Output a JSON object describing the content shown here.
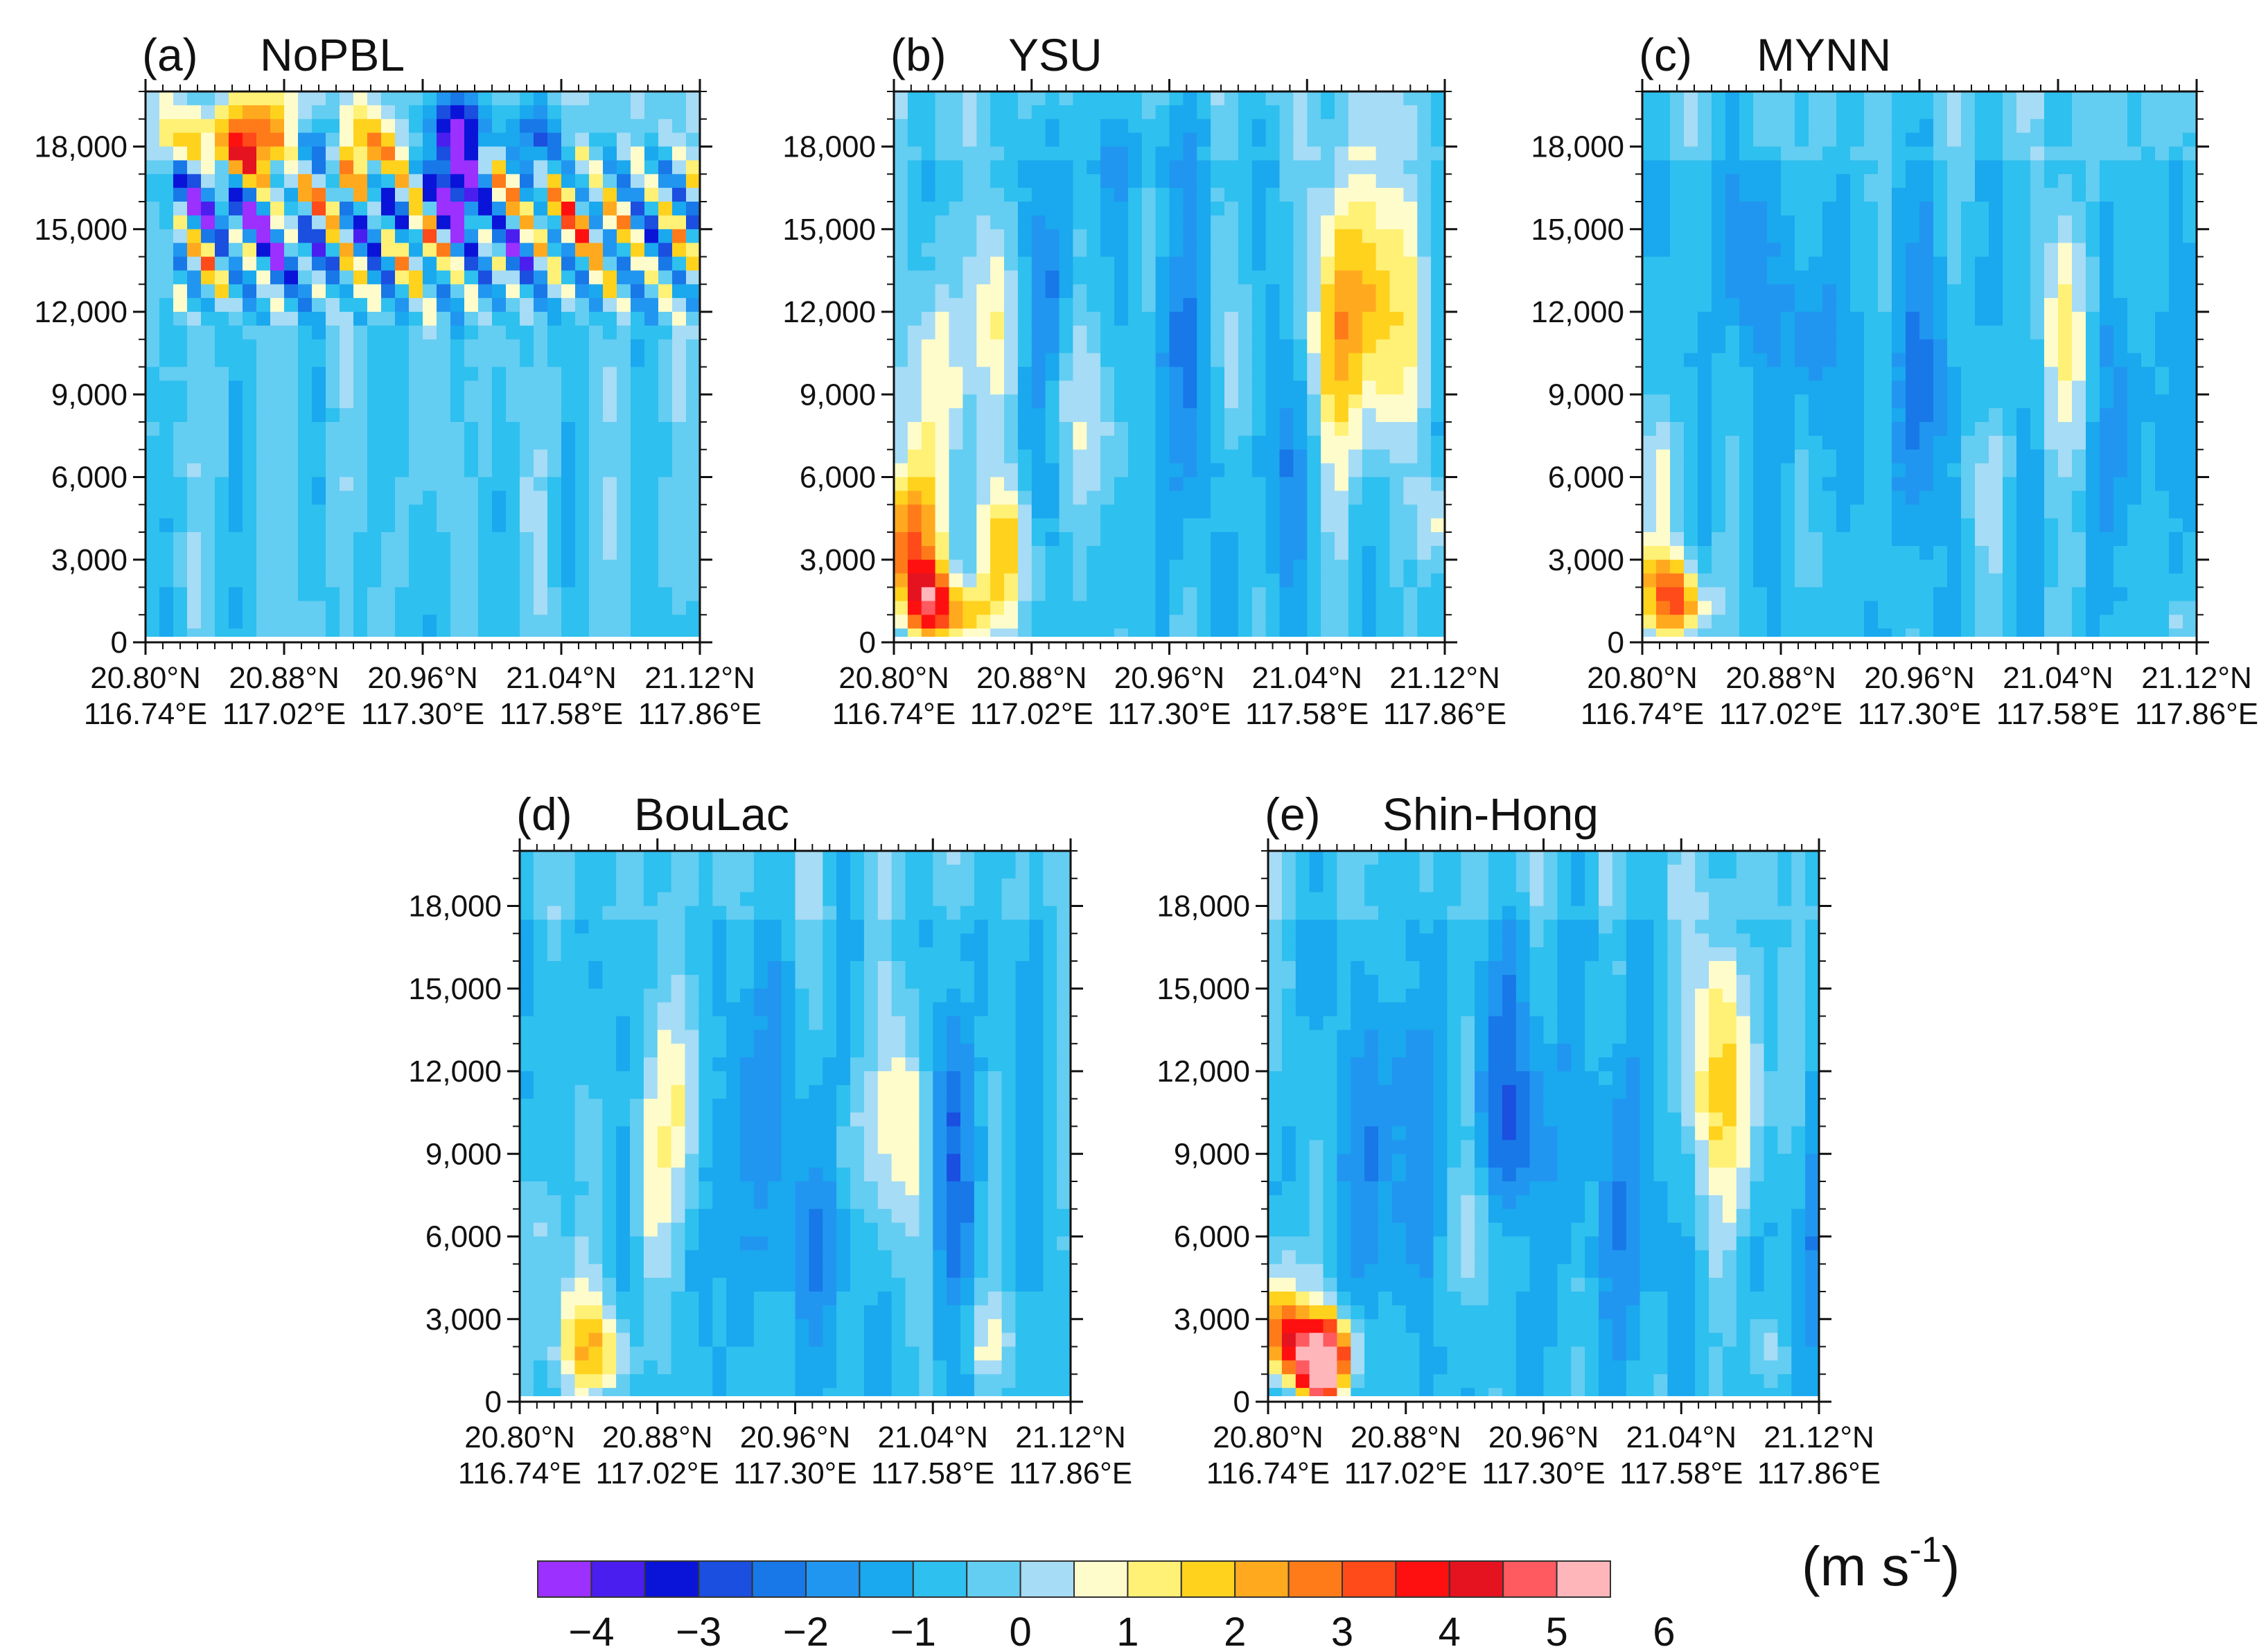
{
  "chart_data": [
    {
      "type": "heatmap",
      "panel_label": "(a)",
      "title": "NoPBL",
      "ylim": [
        0,
        20000
      ],
      "yticks": [
        0,
        3000,
        6000,
        9000,
        12000,
        15000,
        18000
      ],
      "ytick_labels": [
        "0",
        "3,000",
        "6,000",
        "9,000",
        "12,000",
        "15,000",
        "18,000"
      ],
      "xtick_lat": [
        "20.80°N",
        "20.88°N",
        "20.96°N",
        "21.04°N",
        "21.12°N"
      ],
      "xtick_lon": [
        "116.74°E",
        "117.02°E",
        "117.30°E",
        "117.58°E",
        "117.86°E"
      ],
      "field": {
        "base": -0.5,
        "blobs": [
          [
            0.15,
            0.13,
            0.05,
            0.05,
            3.0
          ],
          [
            0.22,
            0.08,
            0.05,
            0.06,
            2.6
          ],
          [
            0.35,
            0.18,
            0.04,
            0.05,
            2.4
          ],
          [
            0.45,
            0.13,
            0.04,
            0.05,
            2.0
          ],
          [
            0.56,
            0.09,
            0.05,
            0.06,
            -4.2
          ],
          [
            0.57,
            0.2,
            0.04,
            0.04,
            -3.8
          ],
          [
            0.18,
            0.22,
            0.05,
            0.04,
            -3.0
          ],
          [
            0.1,
            0.17,
            0.04,
            0.05,
            -2.6
          ],
          [
            0.3,
            0.1,
            0.04,
            0.04,
            -2.4
          ],
          [
            0.4,
            0.22,
            0.04,
            0.04,
            -2.4
          ],
          [
            0.62,
            0.15,
            0.04,
            0.05,
            2.2
          ],
          [
            0.7,
            0.09,
            0.04,
            0.04,
            -2.2
          ],
          [
            0.72,
            0.22,
            0.04,
            0.04,
            1.8
          ],
          [
            0.5,
            0.28,
            0.04,
            0.04,
            1.6
          ],
          [
            0.25,
            0.3,
            0.04,
            0.04,
            -1.8
          ],
          [
            0.12,
            0.3,
            0.04,
            0.04,
            1.4
          ],
          [
            0.66,
            0.28,
            0.04,
            0.04,
            -1.6
          ],
          [
            0.8,
            0.25,
            0.05,
            0.05,
            1.2
          ],
          [
            0.4,
            0.08,
            0.03,
            0.04,
            1.8
          ],
          [
            0.08,
            0.08,
            0.03,
            0.04,
            1.6
          ],
          [
            0.27,
            0.2,
            0.03,
            0.03,
            2.0
          ]
        ],
        "waves": [
          [
            0.06,
            0.45,
            0.06,
            0.36,
            2.6,
            0.38,
            1.0
          ]
        ]
      }
    },
    {
      "type": "heatmap",
      "panel_label": "(b)",
      "title": "YSU",
      "ylim": [
        0,
        20000
      ],
      "yticks": [
        0,
        3000,
        6000,
        9000,
        12000,
        15000,
        18000
      ],
      "ytick_labels": [
        "0",
        "3,000",
        "6,000",
        "9,000",
        "12,000",
        "15,000",
        "18,000"
      ],
      "xtick_lat": [
        "20.80°N",
        "20.88°N",
        "20.96°N",
        "21.04°N",
        "21.12°N"
      ],
      "xtick_lon": [
        "116.74°E",
        "117.02°E",
        "117.30°E",
        "117.58°E",
        "117.86°E"
      ],
      "field": {
        "base": -0.7,
        "blobs": [
          [
            0.02,
            0.82,
            0.04,
            0.09,
            3.6
          ],
          [
            0.06,
            0.92,
            0.03,
            0.05,
            3.4
          ],
          [
            0.12,
            0.95,
            0.04,
            0.04,
            2.6
          ],
          [
            0.2,
            0.84,
            0.04,
            0.08,
            2.4
          ],
          [
            0.08,
            0.55,
            0.05,
            0.15,
            1.5
          ],
          [
            0.18,
            0.4,
            0.04,
            0.14,
            1.3
          ],
          [
            0.3,
            0.55,
            0.03,
            0.1,
            1.1
          ],
          [
            0.37,
            0.6,
            0.03,
            0.12,
            1.2
          ],
          [
            0.87,
            0.38,
            0.06,
            0.18,
            2.4
          ],
          [
            0.8,
            0.45,
            0.05,
            0.18,
            1.4
          ],
          [
            0.62,
            0.5,
            0.03,
            0.12,
            1.0
          ],
          [
            0.98,
            0.78,
            0.02,
            0.06,
            1.4
          ],
          [
            0.45,
            0.1,
            0.12,
            0.06,
            -0.9
          ],
          [
            0.28,
            0.45,
            0.04,
            0.2,
            -1.3
          ],
          [
            0.52,
            0.55,
            0.04,
            0.2,
            -1.2
          ],
          [
            0.7,
            0.65,
            0.04,
            0.2,
            -1.2
          ]
        ]
      }
    },
    {
      "type": "heatmap",
      "panel_label": "(c)",
      "title": "MYNN",
      "ylim": [
        0,
        20000
      ],
      "yticks": [
        0,
        3000,
        6000,
        9000,
        12000,
        15000,
        18000
      ],
      "ytick_labels": [
        "0",
        "3,000",
        "6,000",
        "9,000",
        "12,000",
        "15,000",
        "18,000"
      ],
      "xtick_lat": [
        "20.80°N",
        "20.88°N",
        "20.96°N",
        "21.04°N",
        "21.12°N"
      ],
      "xtick_lon": [
        "116.74°E",
        "117.02°E",
        "117.30°E",
        "117.58°E",
        "117.86°E"
      ],
      "field": {
        "base": -0.8,
        "blobs": [
          [
            0.04,
            0.9,
            0.04,
            0.06,
            2.8
          ],
          [
            0.08,
            0.94,
            0.03,
            0.04,
            2.4
          ],
          [
            0.03,
            0.7,
            0.03,
            0.08,
            1.2
          ],
          [
            0.76,
            0.42,
            0.03,
            0.16,
            1.9
          ],
          [
            0.3,
            0.45,
            0.03,
            0.12,
            -1.4
          ],
          [
            0.5,
            0.55,
            0.04,
            0.18,
            -1.3
          ],
          [
            0.88,
            0.6,
            0.03,
            0.14,
            -1.2
          ],
          [
            0.62,
            0.72,
            0.03,
            0.1,
            0.9
          ],
          [
            0.97,
            0.95,
            0.02,
            0.03,
            1.1
          ],
          [
            0.18,
            0.3,
            0.04,
            0.14,
            -1.0
          ]
        ]
      }
    },
    {
      "type": "heatmap",
      "panel_label": "(d)",
      "title": "BouLac",
      "ylim": [
        0,
        20000
      ],
      "yticks": [
        0,
        3000,
        6000,
        9000,
        12000,
        15000,
        18000
      ],
      "ytick_labels": [
        "0",
        "3,000",
        "6,000",
        "9,000",
        "12,000",
        "15,000",
        "18,000"
      ],
      "xtick_lat": [
        "20.80°N",
        "20.88°N",
        "20.96°N",
        "21.04°N",
        "21.12°N"
      ],
      "xtick_lon": [
        "116.74°E",
        "117.02°E",
        "117.30°E",
        "117.58°E",
        "117.86°E"
      ],
      "field": {
        "base": -0.8,
        "blobs": [
          [
            0.1,
            0.88,
            0.04,
            0.08,
            1.8
          ],
          [
            0.16,
            0.92,
            0.04,
            0.05,
            1.6
          ],
          [
            0.3,
            0.45,
            0.04,
            0.16,
            1.6
          ],
          [
            0.23,
            0.6,
            0.03,
            0.12,
            1.0
          ],
          [
            0.69,
            0.5,
            0.04,
            0.16,
            1.9
          ],
          [
            0.85,
            0.88,
            0.03,
            0.06,
            1.4
          ],
          [
            0.6,
            0.55,
            0.03,
            0.1,
            0.9
          ],
          [
            0.4,
            0.5,
            0.04,
            0.2,
            -1.3
          ],
          [
            0.55,
            0.68,
            0.04,
            0.18,
            -1.2
          ],
          [
            0.78,
            0.55,
            0.04,
            0.18,
            -1.4
          ],
          [
            0.05,
            0.7,
            0.03,
            0.1,
            0.9
          ]
        ]
      }
    },
    {
      "type": "heatmap",
      "panel_label": "(e)",
      "title": "Shin-Hong",
      "ylim": [
        0,
        20000
      ],
      "yticks": [
        0,
        3000,
        6000,
        9000,
        12000,
        15000,
        18000
      ],
      "ytick_labels": [
        "0",
        "3,000",
        "6,000",
        "9,000",
        "12,000",
        "15,000",
        "18,000"
      ],
      "xtick_lat": [
        "20.80°N",
        "20.88°N",
        "20.96°N",
        "21.04°N",
        "21.12°N"
      ],
      "xtick_lon": [
        "116.74°E",
        "117.02°E",
        "117.30°E",
        "117.58°E",
        "117.86°E"
      ],
      "field": {
        "base": -0.8,
        "blobs": [
          [
            0.06,
            0.9,
            0.05,
            0.05,
            4.4
          ],
          [
            0.09,
            0.96,
            0.02,
            0.03,
            5.0
          ],
          [
            0.12,
            0.92,
            0.03,
            0.05,
            3.4
          ],
          [
            0.02,
            0.82,
            0.03,
            0.08,
            2.2
          ],
          [
            0.8,
            0.38,
            0.05,
            0.18,
            1.7
          ],
          [
            0.86,
            0.45,
            0.04,
            0.14,
            1.3
          ],
          [
            0.37,
            0.68,
            0.03,
            0.1,
            1.0
          ],
          [
            0.44,
            0.7,
            0.03,
            0.08,
            0.9
          ],
          [
            0.9,
            0.9,
            0.02,
            0.04,
            1.2
          ],
          [
            0.45,
            0.5,
            0.05,
            0.2,
            -1.6
          ],
          [
            0.22,
            0.55,
            0.05,
            0.2,
            -1.3
          ],
          [
            0.66,
            0.62,
            0.04,
            0.2,
            -1.3
          ],
          [
            0.98,
            0.7,
            0.02,
            0.18,
            -1.2
          ]
        ]
      }
    }
  ],
  "colorbar": {
    "ticks": [
      "-4",
      "-3",
      "-2",
      "-1",
      "0",
      "1",
      "2",
      "3",
      "4",
      "5",
      "6"
    ],
    "unit_label": "(m s",
    "unit_exponent": "-1",
    "unit_close": ")",
    "colors": [
      "#9b30ff",
      "#4b1ef0",
      "#0a14d8",
      "#1a4fe0",
      "#1878e8",
      "#2196f0",
      "#1aa8ee",
      "#2ec0ef",
      "#64cdf2",
      "#a6dcf5",
      "#fffccc",
      "#fff176",
      "#ffd21e",
      "#ffaa1e",
      "#ff7b1a",
      "#ff4a1a",
      "#ff1010",
      "#e4131f",
      "#ff5a5f",
      "#ffb6bb"
    ],
    "levels": [
      -4.5,
      -4,
      -3.5,
      -3,
      -2.5,
      -2,
      -1.5,
      -1,
      -0.5,
      0,
      0.5,
      1,
      1.5,
      2,
      2.5,
      3,
      3.5,
      4,
      4.5,
      5,
      5.5,
      6,
      6.5
    ]
  }
}
